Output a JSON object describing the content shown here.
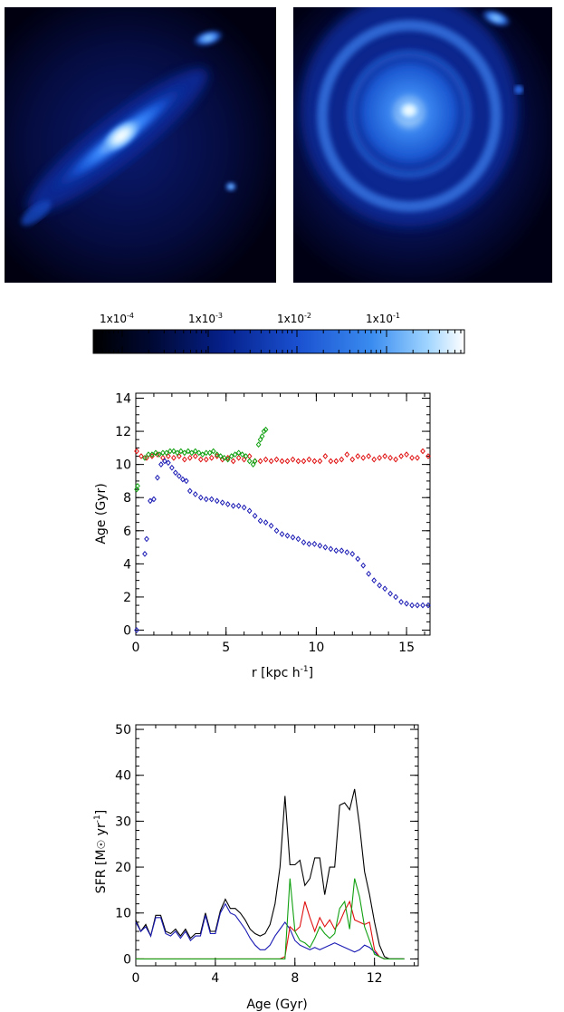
{
  "colors": {
    "blue": "#1a1ab4",
    "red": "#e01010",
    "green": "#10a010",
    "black": "#000000"
  },
  "colorbar": {
    "labels": [
      {
        "mantissa": "1x10",
        "exp": "-4",
        "value": 0.0001
      },
      {
        "mantissa": "1x10",
        "exp": "-3",
        "value": 0.001
      },
      {
        "mantissa": "1x10",
        "exp": "-2",
        "value": 0.01
      },
      {
        "mantissa": "1x10",
        "exp": "-1",
        "value": 0.1
      }
    ]
  },
  "chart_data": [
    {
      "type": "scatter",
      "xlabel": {
        "main": "r [kpc h",
        "sup": "-1",
        "tail": "]"
      },
      "ylabel": "Age (Gyr)",
      "xlim": [
        0,
        16.3
      ],
      "ylim": [
        -0.3,
        14.3
      ],
      "xticks": [
        0,
        5,
        10,
        15
      ],
      "yticks": [
        0,
        2,
        4,
        6,
        8,
        10,
        12,
        14
      ],
      "series": [
        {
          "color": "red",
          "x": [
            0.05,
            0.3,
            0.6,
            0.9,
            1.2,
            1.5,
            1.8,
            2.1,
            2.4,
            2.7,
            3.0,
            3.3,
            3.6,
            3.9,
            4.2,
            4.5,
            4.8,
            5.1,
            5.4,
            5.7,
            6.0,
            6.3,
            6.6,
            6.9,
            7.2,
            7.5,
            7.8,
            8.1,
            8.4,
            8.7,
            9.0,
            9.3,
            9.6,
            9.9,
            10.2,
            10.5,
            10.8,
            11.1,
            11.4,
            11.7,
            12.0,
            12.3,
            12.6,
            12.9,
            13.2,
            13.5,
            13.8,
            14.1,
            14.4,
            14.7,
            15.0,
            15.3,
            15.6,
            15.9,
            16.2
          ],
          "y": [
            10.8,
            10.5,
            10.4,
            10.5,
            10.6,
            10.4,
            10.5,
            10.4,
            10.5,
            10.3,
            10.4,
            10.5,
            10.3,
            10.3,
            10.4,
            10.5,
            10.3,
            10.4,
            10.2,
            10.4,
            10.3,
            10.5,
            10.2,
            10.2,
            10.3,
            10.2,
            10.3,
            10.2,
            10.2,
            10.3,
            10.2,
            10.2,
            10.3,
            10.2,
            10.2,
            10.5,
            10.2,
            10.2,
            10.3,
            10.6,
            10.3,
            10.5,
            10.4,
            10.5,
            10.3,
            10.4,
            10.5,
            10.4,
            10.3,
            10.5,
            10.6,
            10.4,
            10.4,
            10.8,
            10.5
          ]
        },
        {
          "color": "green",
          "x": [
            0.05,
            0.1,
            0.5,
            0.7,
            0.9,
            1.1,
            1.3,
            1.5,
            1.7,
            1.9,
            2.1,
            2.3,
            2.5,
            2.7,
            2.9,
            3.1,
            3.3,
            3.5,
            3.7,
            3.9,
            4.1,
            4.3,
            4.5,
            4.7,
            4.9,
            5.1,
            5.3,
            5.5,
            5.7,
            5.9,
            6.1,
            6.3,
            6.5,
            6.6,
            6.8,
            6.9,
            7.0,
            7.1,
            7.2
          ],
          "y": [
            8.5,
            8.7,
            10.4,
            10.6,
            10.6,
            10.7,
            10.6,
            10.7,
            10.7,
            10.8,
            10.8,
            10.7,
            10.8,
            10.7,
            10.8,
            10.7,
            10.8,
            10.7,
            10.6,
            10.7,
            10.7,
            10.8,
            10.6,
            10.5,
            10.4,
            10.3,
            10.5,
            10.6,
            10.7,
            10.6,
            10.5,
            10.2,
            10.0,
            10.2,
            11.2,
            11.5,
            11.7,
            12.0,
            12.1
          ]
        },
        {
          "color": "blue",
          "x": [
            0.05,
            0.5,
            0.6,
            0.8,
            1.0,
            1.2,
            1.4,
            1.6,
            1.8,
            2.0,
            2.2,
            2.4,
            2.6,
            2.8,
            3.0,
            3.3,
            3.6,
            3.9,
            4.2,
            4.5,
            4.8,
            5.1,
            5.4,
            5.7,
            6.0,
            6.3,
            6.6,
            6.9,
            7.2,
            7.5,
            7.8,
            8.1,
            8.4,
            8.7,
            9.0,
            9.3,
            9.6,
            9.9,
            10.2,
            10.5,
            10.8,
            11.1,
            11.4,
            11.7,
            12.0,
            12.3,
            12.6,
            12.9,
            13.2,
            13.5,
            13.8,
            14.1,
            14.4,
            14.7,
            15.0,
            15.3,
            15.6,
            15.9,
            16.2
          ],
          "y": [
            0.0,
            4.6,
            5.5,
            7.8,
            7.9,
            9.2,
            10.0,
            10.2,
            10.1,
            9.8,
            9.5,
            9.3,
            9.1,
            9.0,
            8.4,
            8.2,
            8.0,
            7.9,
            7.9,
            7.8,
            7.7,
            7.6,
            7.5,
            7.5,
            7.4,
            7.2,
            6.9,
            6.6,
            6.5,
            6.3,
            6.0,
            5.8,
            5.7,
            5.6,
            5.5,
            5.3,
            5.2,
            5.2,
            5.1,
            5.0,
            4.9,
            4.8,
            4.8,
            4.7,
            4.6,
            4.3,
            3.9,
            3.4,
            3.0,
            2.7,
            2.5,
            2.2,
            2.0,
            1.7,
            1.6,
            1.5,
            1.5,
            1.5,
            1.5
          ]
        }
      ]
    },
    {
      "type": "line",
      "xlabel": "Age (Gyr)",
      "ylabel": {
        "main": "SFR [M",
        "sun": "☉",
        "mid": " yr",
        "sup": "-1",
        "tail": "]"
      },
      "xlim": [
        0,
        14.2
      ],
      "ylim": [
        -1.5,
        51
      ],
      "xticks": [
        0,
        4,
        8,
        12
      ],
      "yticks": [
        0,
        10,
        20,
        30,
        40,
        50
      ],
      "x": [
        0.0,
        0.25,
        0.5,
        0.75,
        1.0,
        1.25,
        1.5,
        1.75,
        2.0,
        2.25,
        2.5,
        2.75,
        3.0,
        3.25,
        3.5,
        3.75,
        4.0,
        4.25,
        4.5,
        4.75,
        5.0,
        5.25,
        5.5,
        5.75,
        6.0,
        6.25,
        6.5,
        6.75,
        7.0,
        7.25,
        7.5,
        7.75,
        8.0,
        8.25,
        8.5,
        8.75,
        9.0,
        9.25,
        9.5,
        9.75,
        10.0,
        10.25,
        10.5,
        10.75,
        11.0,
        11.25,
        11.5,
        11.75,
        12.0,
        12.25,
        12.5,
        12.75,
        13.0,
        13.25,
        13.5
      ],
      "series": [
        {
          "color": "black",
          "values": [
            8.5,
            6.0,
            7.5,
            5.0,
            9.5,
            9.5,
            6.0,
            5.5,
            6.5,
            5.0,
            6.5,
            4.5,
            5.5,
            5.5,
            10.0,
            6.0,
            6.0,
            10.5,
            13.0,
            11.0,
            11.0,
            10.0,
            8.5,
            6.5,
            5.5,
            5.0,
            5.5,
            7.5,
            12.0,
            20.0,
            35.5,
            20.5,
            20.5,
            21.5,
            16.0,
            17.5,
            22.0,
            22.0,
            14.0,
            20.0,
            20.0,
            33.5,
            34.0,
            32.5,
            37.0,
            29.0,
            19.0,
            14.0,
            8.0,
            3.0,
            0.5,
            0.0,
            0.0,
            0.0,
            0.0
          ]
        },
        {
          "color": "blue",
          "values": [
            8.0,
            6.0,
            7.0,
            5.0,
            9.0,
            9.0,
            5.5,
            5.0,
            6.0,
            4.5,
            6.0,
            4.0,
            5.0,
            5.0,
            9.5,
            5.5,
            5.5,
            10.0,
            12.0,
            10.0,
            9.5,
            8.0,
            6.5,
            4.5,
            3.0,
            2.0,
            2.0,
            3.0,
            5.0,
            6.5,
            8.0,
            6.5,
            4.0,
            3.0,
            2.5,
            2.0,
            2.5,
            2.0,
            2.5,
            3.0,
            3.5,
            3.0,
            2.5,
            2.0,
            1.5,
            2.0,
            3.0,
            2.5,
            1.5,
            0.5,
            0.0,
            0.0,
            0.0,
            0.0,
            0.0
          ]
        },
        {
          "color": "red",
          "values": [
            0,
            0,
            0,
            0,
            0,
            0,
            0,
            0,
            0,
            0,
            0,
            0,
            0,
            0,
            0,
            0,
            0,
            0,
            0,
            0,
            0,
            0,
            0,
            0,
            0,
            0,
            0,
            0,
            0,
            0,
            0.5,
            7.0,
            6.0,
            7.0,
            12.5,
            9.0,
            6.0,
            9.0,
            7.0,
            8.5,
            6.5,
            8.0,
            10.5,
            12.5,
            8.5,
            8.0,
            7.5,
            8.0,
            2.0,
            0.5,
            0.0,
            0,
            0,
            0,
            0
          ]
        },
        {
          "color": "green",
          "values": [
            0,
            0,
            0,
            0,
            0,
            0,
            0,
            0,
            0,
            0,
            0,
            0,
            0,
            0,
            0,
            0,
            0,
            0,
            0,
            0,
            0,
            0,
            0,
            0,
            0,
            0,
            0,
            0,
            0,
            0,
            0,
            17.5,
            6.0,
            4.0,
            3.5,
            2.5,
            4.5,
            7.0,
            5.5,
            4.5,
            5.5,
            11.0,
            12.5,
            6.5,
            17.5,
            13.5,
            7.0,
            4.0,
            1.0,
            0.5,
            0.0,
            0,
            0,
            0,
            0
          ]
        }
      ]
    }
  ]
}
